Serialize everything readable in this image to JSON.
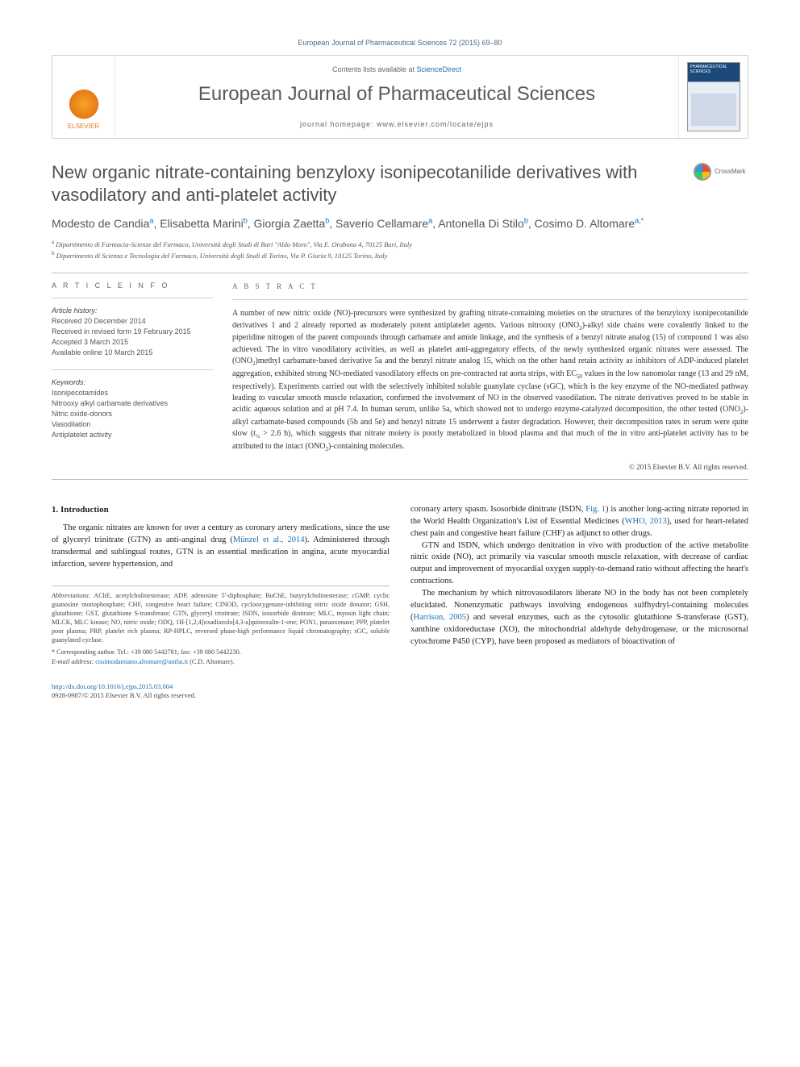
{
  "citation": "European Journal of Pharmaceutical Sciences 72 (2015) 69–80",
  "header": {
    "contents_prefix": "Contents lists available at ",
    "contents_link": "ScienceDirect",
    "journal": "European Journal of Pharmaceutical Sciences",
    "homepage_label": "journal homepage: www.elsevier.com/locate/ejps",
    "publisher": "ELSEVIER",
    "cover_title": "PHARMACEUTICAL SCIENCES"
  },
  "article": {
    "title": "New organic nitrate-containing benzyloxy isonipecotanilide derivatives with vasodilatory and anti-platelet activity",
    "crossmark": "CrossMark"
  },
  "authors_html": "Modesto de Candia<sup>a</sup>, Elisabetta Marini<sup>b</sup>, Giorgia Zaetta<sup>b</sup>, Saverio Cellamare<sup>a</sup>, Antonella Di Stilo<sup>b</sup>, Cosimo D. Altomare<sup>a,<span class='star'>*</span></sup>",
  "affiliations": {
    "a": "Dipartimento di Farmacia-Scienze del Farmaco, Università degli Studi di Bari \"Aldo Moro\", Via E. Orabona 4, 70125 Bari, Italy",
    "b": "Dipartimento di Scienza e Tecnologia del Farmaco, Università degli Studi di Torino, Via P. Giuria 9, 10125 Torino, Italy"
  },
  "info": {
    "label": "A R T I C L E   I N F O",
    "history_heading": "Article history:",
    "history": [
      "Received 20 December 2014",
      "Received in revised form 19 February 2015",
      "Accepted 3 March 2015",
      "Available online 10 March 2015"
    ],
    "keywords_heading": "Keywords:",
    "keywords": [
      "Isonipecotamides",
      "Nitrooxy alkyl carbamate derivatives",
      "Nitric oxide-donors",
      "Vasodilation",
      "Antiplatelet activity"
    ]
  },
  "abstract": {
    "label": "A B S T R A C T",
    "text": "A number of new nitric oxide (NO)-precursors were synthesized by grafting nitrate-containing moieties on the structures of the benzyloxy isonipecotanilide derivatives 1 and 2 already reported as moderately potent antiplatelet agents. Various nitrooxy (ONO2)-alkyl side chains were covalently linked to the piperidine nitrogen of the parent compounds through carbamate and amide linkage, and the synthesis of a benzyl nitrate analog (15) of compound 1 was also achieved. The in vitro vasodilatory activities, as well as platelet anti-aggregatory effects, of the newly synthesized organic nitrates were assessed. The (ONO2)methyl carbamate-based derivative 5a and the benzyl nitrate analog 15, which on the other hand retain activity as inhibitors of ADP-induced platelet aggregation, exhibited strong NO-mediated vasodilatory effects on pre-contracted rat aorta strips, with EC50 values in the low nanomolar range (13 and 29 nM, respectively). Experiments carried out with the selectively inhibited soluble guanylate cyclase (sGC), which is the key enzyme of the NO-mediated pathway leading to vascular smooth muscle relaxation, confirmed the involvement of NO in the observed vasodilation. The nitrate derivatives proved to be stable in acidic aqueous solution and at pH 7.4. In human serum, unlike 5a, which showed not to undergo enzyme-catalyzed decomposition, the other tested (ONO2)-alkyl carbamate-based compounds (5b and 5e) and benzyl nitrate 15 underwent a faster degradation. However, their decomposition rates in serum were quite slow (t½ > 2.6 h), which suggests that nitrate moiety is poorly metabolized in blood plasma and that much of the in vitro anti-platelet activity has to be attributed to the intact (ONO2)-containing molecules.",
    "copyright": "© 2015 Elsevier B.V. All rights reserved."
  },
  "introduction": {
    "heading": "1. Introduction",
    "p1_pre": "The organic nitrates are known for over a century as coronary artery medications, since the use of glyceryl trinitrate (GTN) as anti-anginal drug (",
    "p1_link": "Münzel et al., 2014",
    "p1_post": "). Administered through transdermal and sublingual routes, GTN is an essential medication in angina, acute myocardial infarction, severe hypertension, and",
    "p2_pre": "coronary artery spasm. Isosorbide dinitrate (ISDN, ",
    "p2_link": "Fig. 1",
    "p2_mid1": ") is another long-acting nitrate reported in the World Health Organization's List of Essential Medicines (",
    "p2_link2": "WHO, 2013",
    "p2_post": "), used for heart-related chest pain and congestive heart failure (CHF) as adjunct to other drugs.",
    "p3": "GTN and ISDN, which undergo denitration in vivo with production of the active metabolite nitric oxide (NO), act primarily via vascular smooth muscle relaxation, with decrease of cardiac output and improvement of myocardial oxygen supply-to-demand ratio without affecting the heart's contractions.",
    "p4_pre": "The mechanism by which nitrovasodilators liberate NO in the body has not been completely elucidated. Nonenzymatic pathways involving endogenous sulfhydryl-containing molecules (",
    "p4_link": "Harrison, 2005",
    "p4_post": ") and several enzymes, such as the cytosolic glutathione S-transferase (GST), xanthine oxidoreductase (XO), the mitochondrial aldehyde dehydrogenase, or the microsomal cytochrome P450 (CYP), have been proposed as mediators of bioactivation of"
  },
  "footnotes": {
    "abbr_label": "Abbreviations:",
    "abbr_text": " AChE, acetylcholinesterase; ADP, adenosine 5′-diphosphate; BuChE, butyrylcholinesterase; cGMP, cyclic guanosine monophosphate; CHF, congestive heart failure; CINOD, cyclooxygenase-inhibiting nitric oxide donator; GSH, glutathione; GST, glutathione S-transferase; GTN, glyceryl trinitrate; ISDN, isosorbide dinitrate; MLC, myosin light chain; MLCK, MLC kinase; NO, nitric oxide; ODQ, 1H-[1,2,4]oxadiazolo[4,3-a]quinoxalin-1-one; PON1, paraoxonase; PPP, platelet poor plasma; PRP, platelet rich plasma; RP-HPLC, reversed phase-high performance liquid chromatography; sGC, soluble guanylated cyclase.",
    "corr_label": "* Corresponding author. Tel.: +39 080 5442781; fax: +39 080 5442230.",
    "email_label": "E-mail address: ",
    "email": "cosimodamiano.altomare@uniba.it",
    "email_who": " (C.D. Altomare)."
  },
  "doi": {
    "url": "http://dx.doi.org/10.1016/j.ejps.2015.03.004",
    "issn_line": "0928-0987/© 2015 Elsevier B.V. All rights reserved."
  },
  "colors": {
    "link": "#1a6fb3",
    "text": "#333333",
    "rule": "#bfbfbf",
    "elsevier": "#e67817"
  },
  "typography": {
    "title_fontsize_pt": 22,
    "journal_fontsize_pt": 24,
    "body_fontsize_pt": 10.5,
    "abstract_fontsize_pt": 10,
    "footnote_fontsize_pt": 8.2
  }
}
